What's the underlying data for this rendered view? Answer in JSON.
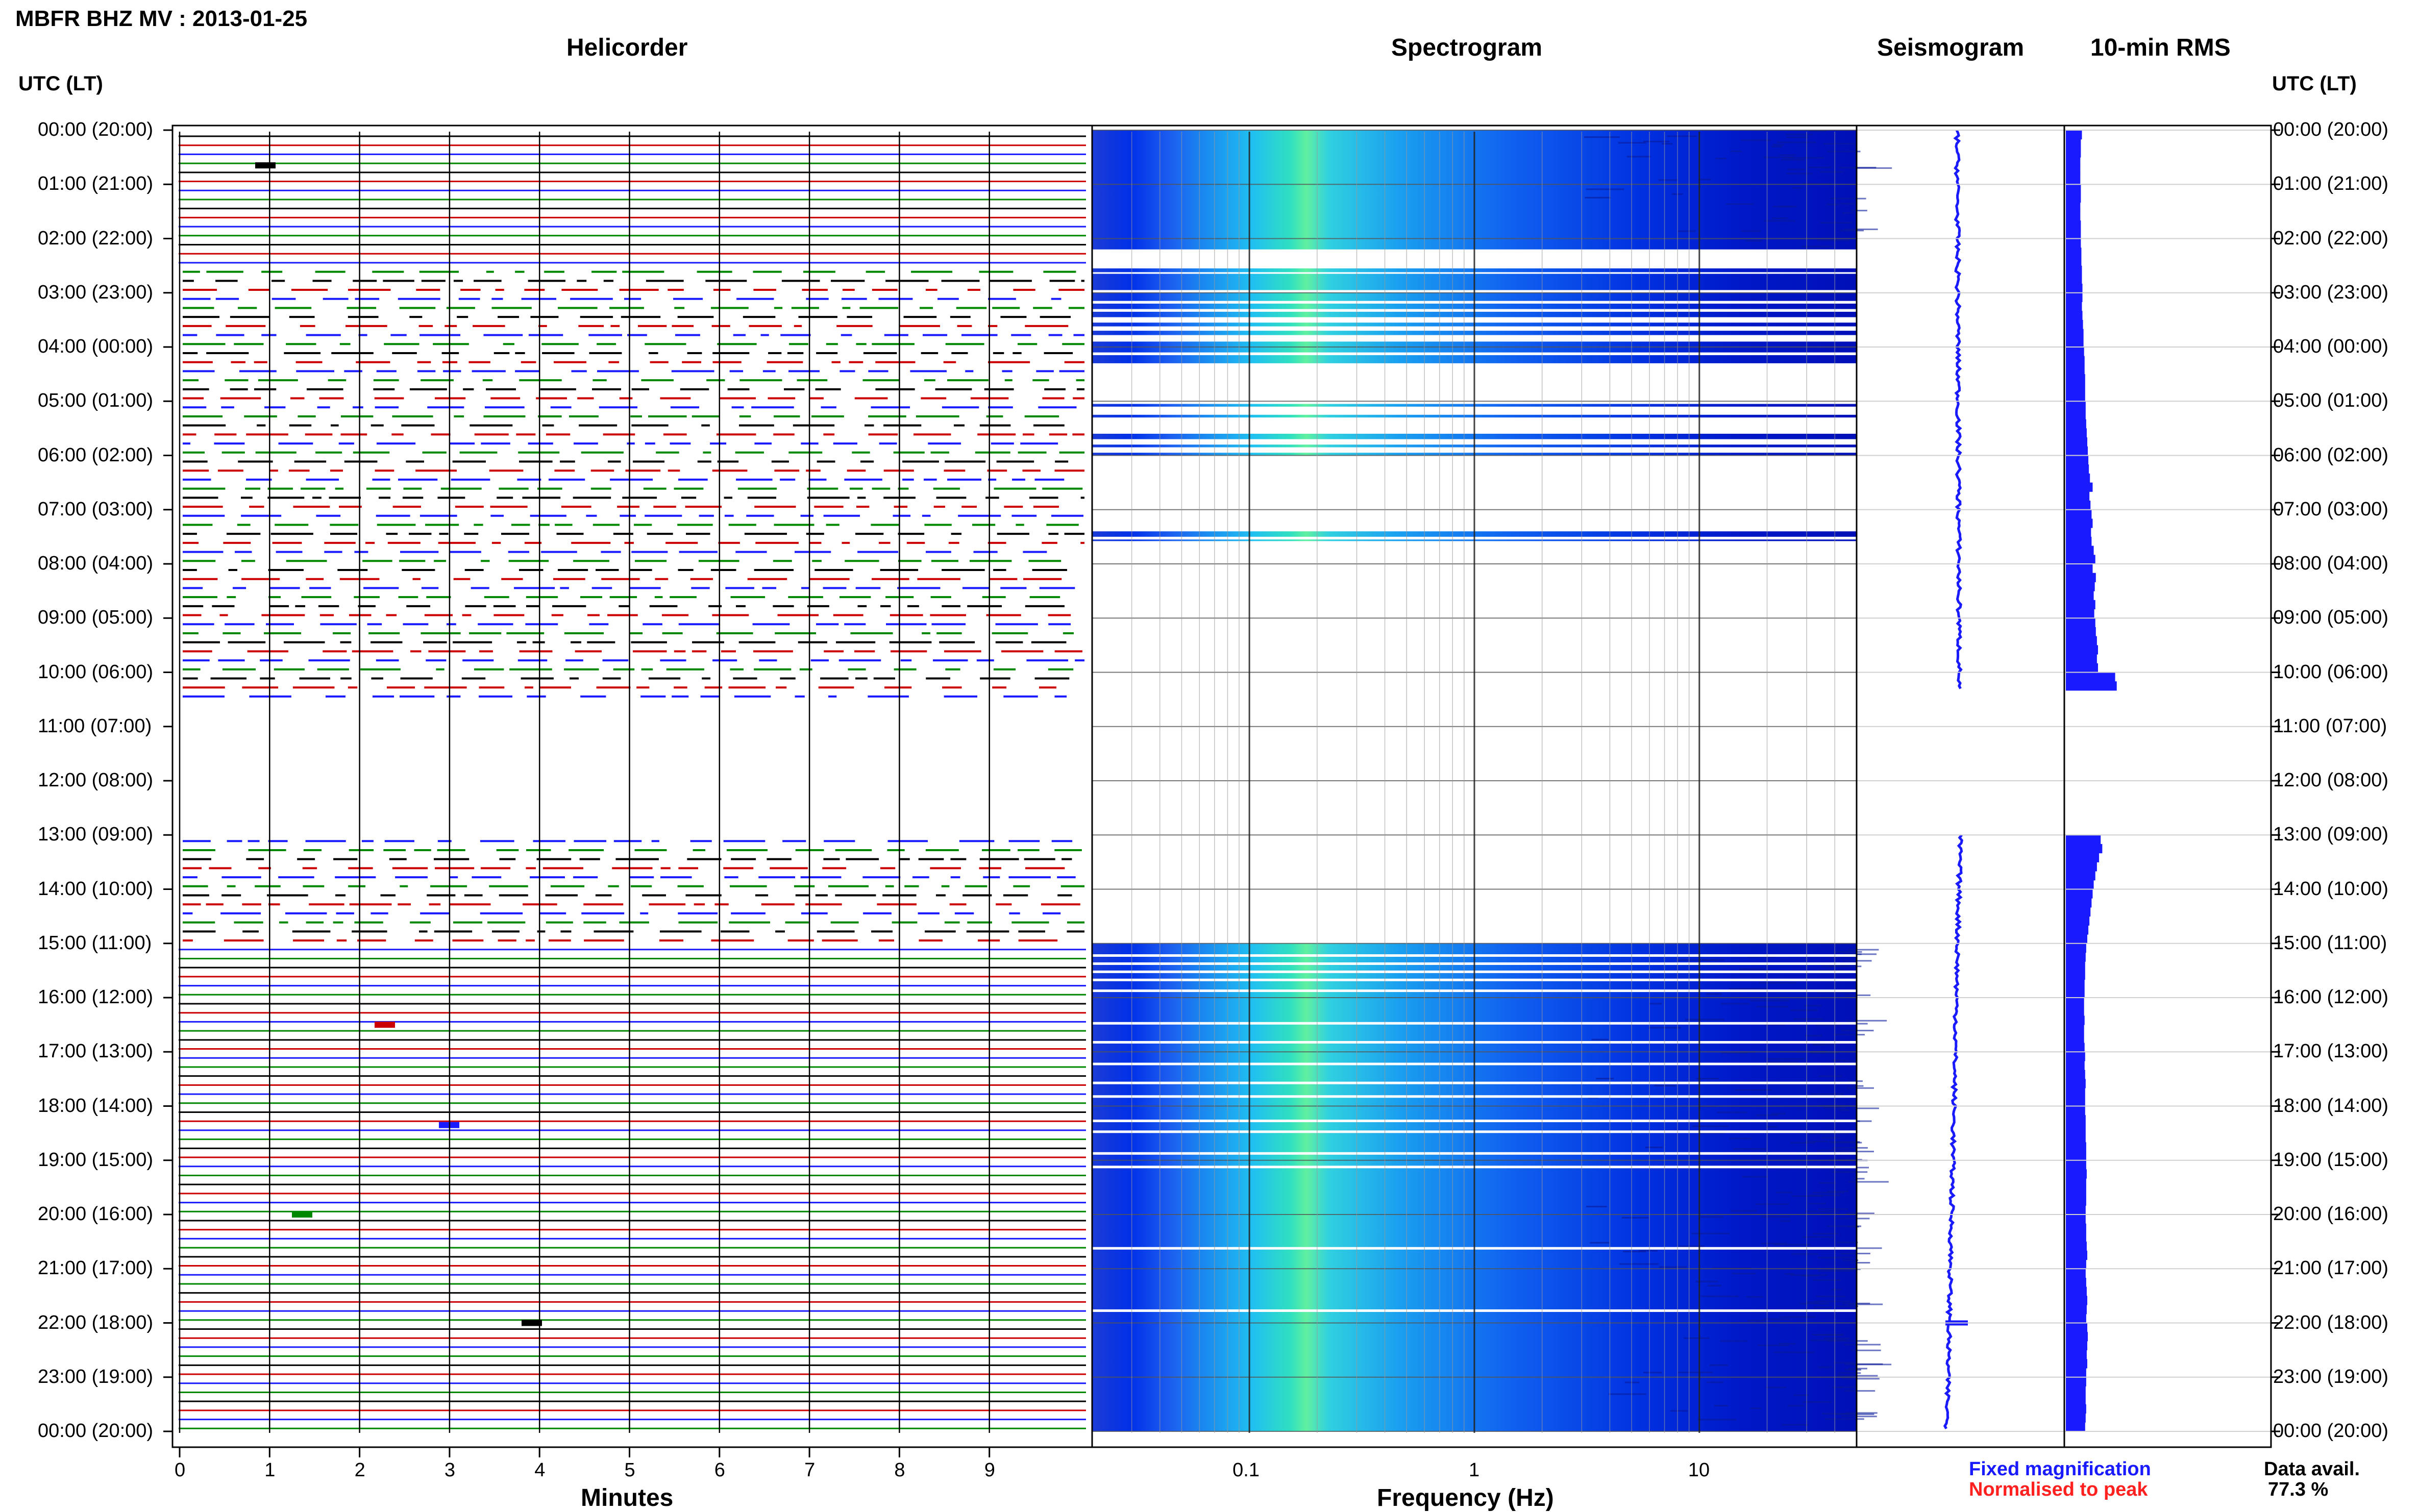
{
  "header": {
    "title": "MBFR BHZ MV : 2013-01-25",
    "utc_left": "UTC (LT)",
    "utc_right": "UTC (LT)"
  },
  "panels": {
    "helicorder": "Helicorder",
    "spectrogram": "Spectrogram",
    "seismogram": "Seismogram",
    "rms": "10-min RMS"
  },
  "axes": {
    "minutes_label": "Minutes",
    "frequency_label": "Frequency (Hz)"
  },
  "legend": {
    "fixed": "Fixed magnification",
    "normalised": "Normalised to peak",
    "fixed_color": "#1a1aff",
    "normalised_color": "#ff2020"
  },
  "availability": {
    "label": "Data avail.",
    "value": "77.3 %"
  },
  "chart_data": {
    "type": "helicorder",
    "hour_labels": [
      "00:00 (20:00)",
      "01:00 (21:00)",
      "02:00 (22:00)",
      "03:00 (23:00)",
      "04:00 (00:00)",
      "05:00 (01:00)",
      "06:00 (02:00)",
      "07:00 (03:00)",
      "08:00 (04:00)",
      "09:00 (05:00)",
      "10:00 (06:00)",
      "11:00 (07:00)",
      "12:00 (08:00)",
      "13:00 (09:00)",
      "14:00 (10:00)",
      "15:00 (11:00)",
      "16:00 (12:00)",
      "17:00 (13:00)",
      "18:00 (14:00)",
      "19:00 (15:00)",
      "20:00 (16:00)",
      "21:00 (17:00)",
      "22:00 (18:00)",
      "23:00 (19:00)",
      "00:00 (20:00)"
    ],
    "minute_ticks": [
      "0",
      "1",
      "2",
      "3",
      "4",
      "5",
      "6",
      "7",
      "8",
      "9"
    ],
    "minute_range": [
      0,
      10
    ],
    "frequency_ticks": [
      {
        "value": 0.1,
        "label": "0.1"
      },
      {
        "value": 1,
        "label": "1"
      },
      {
        "value": 10,
        "label": "10"
      }
    ],
    "frequency_range": [
      0.02,
      50
    ],
    "trace_colors": [
      "#000000",
      "#cc0000",
      "#1a1aff",
      "#008800"
    ],
    "data_gaps_hours": [
      [
        10.5,
        13.0
      ]
    ],
    "rms_10min": [
      0.3,
      0.28,
      0.28,
      0.27,
      0.27,
      0.27,
      0.28,
      0.28,
      0.27,
      0.27,
      0.28,
      0.28,
      0.28,
      0.29,
      0.29,
      0.3,
      0.3,
      0.31,
      0.31,
      0.3,
      0.31,
      0.32,
      0.33,
      0.33,
      0.34,
      0.35,
      0.35,
      0.36,
      0.36,
      0.36,
      0.37,
      0.37,
      0.38,
      0.39,
      0.4,
      0.41,
      0.42,
      0.43,
      0.45,
      0.5,
      0.44,
      0.46,
      0.48,
      0.5,
      0.47,
      0.48,
      0.52,
      0.55,
      0.5,
      0.56,
      0.54,
      0.52,
      0.55,
      0.53,
      0.55,
      0.56,
      0.58,
      0.6,
      0.58,
      0.6,
      0.92,
      0.95,
      0.0,
      0.0,
      0.0,
      0.0,
      0.0,
      0.0,
      0.0,
      0.0,
      0.0,
      0.0,
      0.0,
      0.0,
      0.0,
      0.0,
      0.0,
      0.0,
      0.65,
      0.68,
      0.62,
      0.58,
      0.55,
      0.52,
      0.5,
      0.48,
      0.46,
      0.44,
      0.42,
      0.4,
      0.38,
      0.37,
      0.36,
      0.36,
      0.35,
      0.35,
      0.34,
      0.34,
      0.35,
      0.34,
      0.34,
      0.35,
      0.36,
      0.35,
      0.36,
      0.37,
      0.36,
      0.36,
      0.36,
      0.37,
      0.37,
      0.37,
      0.38,
      0.38,
      0.38,
      0.39,
      0.38,
      0.38,
      0.38,
      0.37,
      0.37,
      0.38,
      0.38,
      0.39,
      0.4,
      0.38,
      0.37,
      0.38,
      0.39,
      0.4,
      0.39,
      0.38,
      0.4,
      0.41,
      0.4,
      0.39,
      0.4,
      0.38,
      0.38,
      0.37,
      0.37,
      0.38,
      0.37,
      0.36
    ]
  }
}
